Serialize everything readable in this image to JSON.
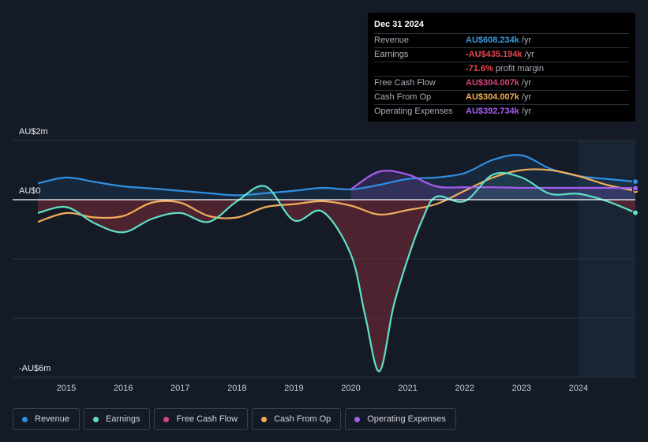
{
  "tooltip": {
    "date": "Dec 31 2024",
    "rows": [
      {
        "label": "Revenue",
        "value": "AU$608.234k",
        "unit": "/yr",
        "color": "#3a9bdc"
      },
      {
        "label": "Earnings",
        "value": "-AU$435.194k",
        "unit": "/yr",
        "color": "#e8474f"
      },
      {
        "label": "",
        "value": "-71.6%",
        "unit": "profit margin",
        "color": "#e8474f"
      },
      {
        "label": "Free Cash Flow",
        "value": "AU$304.007k",
        "unit": "/yr",
        "color": "#d9457f"
      },
      {
        "label": "Cash From Op",
        "value": "AU$304.007k",
        "unit": "/yr",
        "color": "#f0ae5a"
      },
      {
        "label": "Operating Expenses",
        "value": "AU$392.734k",
        "unit": "/yr",
        "color": "#a45df0"
      }
    ]
  },
  "legend": [
    {
      "label": "Revenue",
      "color": "#2f8fe0"
    },
    {
      "label": "Earnings",
      "color": "#5fe0c8"
    },
    {
      "label": "Free Cash Flow",
      "color": "#d9457f"
    },
    {
      "label": "Cash From Op",
      "color": "#f0ae5a"
    },
    {
      "label": "Operating Expenses",
      "color": "#a45df0"
    }
  ],
  "chart_data": {
    "type": "line",
    "title": "",
    "xlabel": "",
    "ylabel": "",
    "ylim": [
      -6,
      2
    ],
    "xlim": [
      2014.5,
      2025.0
    ],
    "y_tick_labels": [
      "AU$2m",
      "AU$0",
      "-AU$6m"
    ],
    "y_tick_values": [
      2,
      0,
      -6
    ],
    "x_ticks": [
      2015,
      2016,
      2017,
      2018,
      2019,
      2020,
      2021,
      2022,
      2023,
      2024
    ],
    "forecast_start": 2024.0,
    "series": [
      {
        "name": "Revenue",
        "color": "#2f8fe0",
        "x": [
          2014.5,
          2015.0,
          2015.5,
          2016.0,
          2016.5,
          2017.0,
          2017.5,
          2018.0,
          2018.5,
          2019.0,
          2019.5,
          2020.0,
          2020.5,
          2021.0,
          2021.5,
          2022.0,
          2022.5,
          2023.0,
          2023.5,
          2024.0,
          2024.5,
          2025.0
        ],
        "y": [
          0.55,
          0.75,
          0.6,
          0.45,
          0.38,
          0.3,
          0.22,
          0.15,
          0.22,
          0.3,
          0.4,
          0.35,
          0.5,
          0.7,
          0.75,
          0.9,
          1.35,
          1.5,
          1.05,
          0.8,
          0.7,
          0.61
        ]
      },
      {
        "name": "Earnings",
        "color": "#5fe0c8",
        "x": [
          2014.5,
          2015.0,
          2015.5,
          2016.0,
          2016.5,
          2017.0,
          2017.5,
          2018.0,
          2018.5,
          2019.0,
          2019.5,
          2020.0,
          2020.25,
          2020.5,
          2020.75,
          2021.0,
          2021.25,
          2021.5,
          2022.0,
          2022.5,
          2023.0,
          2023.5,
          2024.0,
          2024.5,
          2025.0
        ],
        "y": [
          -0.45,
          -0.25,
          -0.8,
          -1.1,
          -0.65,
          -0.45,
          -0.75,
          -0.05,
          0.45,
          -0.7,
          -0.4,
          -1.85,
          -3.9,
          -5.8,
          -3.6,
          -2.0,
          -0.7,
          0.1,
          -0.05,
          0.85,
          0.75,
          0.2,
          0.2,
          -0.05,
          -0.44
        ]
      },
      {
        "name": "Free Cash Flow",
        "color": "#d9457f",
        "x": [
          2014.5,
          2015.0,
          2016.0,
          2017.0,
          2018.0,
          2019.0,
          2020.0,
          2020.5,
          2021.0,
          2021.5,
          2022.0,
          2022.5,
          2023.0,
          2023.5,
          2024.0,
          2024.5,
          2025.0
        ],
        "y": [
          -0.75,
          -0.45,
          -0.6,
          -0.1,
          -0.6,
          -0.2,
          -0.1,
          -0.5,
          -0.3,
          -0.1,
          0.3,
          0.75,
          1.0,
          1.0,
          0.8,
          0.5,
          0.3
        ]
      },
      {
        "name": "Cash From Op",
        "color": "#f0ae5a",
        "x": [
          2014.5,
          2015.0,
          2015.5,
          2016.0,
          2016.5,
          2017.0,
          2017.5,
          2018.0,
          2018.5,
          2019.0,
          2019.5,
          2020.0,
          2020.5,
          2021.0,
          2021.5,
          2022.0,
          2022.5,
          2023.0,
          2023.5,
          2024.0,
          2024.5,
          2025.0
        ],
        "y": [
          -0.75,
          -0.45,
          -0.6,
          -0.55,
          -0.1,
          -0.1,
          -0.55,
          -0.6,
          -0.25,
          -0.15,
          -0.05,
          -0.2,
          -0.5,
          -0.35,
          -0.15,
          0.3,
          0.75,
          1.0,
          1.0,
          0.8,
          0.5,
          0.3
        ]
      },
      {
        "name": "Operating Expenses",
        "color": "#a45df0",
        "x": [
          2020.0,
          2020.5,
          2021.0,
          2021.5,
          2022.0,
          2022.5,
          2023.0,
          2023.5,
          2024.0,
          2024.5,
          2025.0
        ],
        "y": [
          0.35,
          0.95,
          0.85,
          0.45,
          0.42,
          0.42,
          0.4,
          0.4,
          0.4,
          0.4,
          0.39
        ]
      }
    ]
  }
}
